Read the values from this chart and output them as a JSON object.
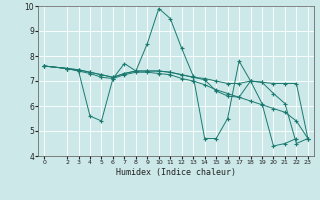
{
  "title": "",
  "xlabel": "Humidex (Indice chaleur)",
  "ylabel": "",
  "xlim": [
    -0.5,
    23.5
  ],
  "ylim": [
    4,
    10
  ],
  "xticks": [
    0,
    2,
    3,
    4,
    5,
    6,
    7,
    8,
    9,
    10,
    11,
    12,
    13,
    14,
    15,
    16,
    17,
    18,
    19,
    20,
    21,
    22,
    23
  ],
  "yticks": [
    4,
    5,
    6,
    7,
    8,
    9,
    10
  ],
  "bg_color": "#cce8e8",
  "line_color": "#1a7a70",
  "series": [
    {
      "x": [
        0,
        2,
        3,
        4,
        5,
        6,
        7,
        8,
        9,
        10,
        11,
        12,
        13,
        14,
        15,
        16,
        17,
        18,
        19,
        20,
        21,
        22
      ],
      "y": [
        7.6,
        7.5,
        7.4,
        5.6,
        5.4,
        7.1,
        7.7,
        7.4,
        8.5,
        9.9,
        9.5,
        8.3,
        7.2,
        4.7,
        4.7,
        5.5,
        7.8,
        7.0,
        6.1,
        4.4,
        4.5,
        4.7
      ]
    },
    {
      "x": [
        0,
        2,
        3,
        4,
        5,
        6,
        7,
        8,
        9,
        10,
        11,
        12,
        13,
        14,
        15,
        16,
        17,
        18,
        19,
        20,
        21,
        22,
        23
      ],
      "y": [
        7.6,
        7.5,
        7.4,
        7.3,
        7.15,
        7.1,
        7.25,
        7.35,
        7.35,
        7.3,
        7.25,
        7.1,
        7.0,
        6.85,
        6.65,
        6.5,
        6.35,
        6.2,
        6.05,
        5.9,
        5.75,
        5.4,
        4.7
      ]
    },
    {
      "x": [
        0,
        2,
        3,
        4,
        5,
        6,
        7,
        8,
        9,
        10,
        11,
        12,
        13,
        14,
        15,
        16,
        17,
        18,
        19,
        20,
        21,
        22,
        23
      ],
      "y": [
        7.6,
        7.5,
        7.45,
        7.35,
        7.25,
        7.15,
        7.3,
        7.4,
        7.4,
        7.4,
        7.35,
        7.25,
        7.15,
        7.1,
        7.0,
        6.9,
        6.9,
        7.0,
        6.95,
        6.9,
        6.9,
        6.9,
        4.7
      ]
    },
    {
      "x": [
        0,
        2,
        3,
        4,
        5,
        6,
        7,
        8,
        9,
        10,
        11,
        12,
        13,
        14,
        15,
        16,
        17,
        18,
        19,
        20,
        21,
        22,
        23
      ],
      "y": [
        7.6,
        7.5,
        7.45,
        7.35,
        7.25,
        7.15,
        7.3,
        7.4,
        7.4,
        7.4,
        7.35,
        7.25,
        7.15,
        7.05,
        6.6,
        6.4,
        6.35,
        7.0,
        6.95,
        6.5,
        6.1,
        4.5,
        4.7
      ]
    }
  ]
}
